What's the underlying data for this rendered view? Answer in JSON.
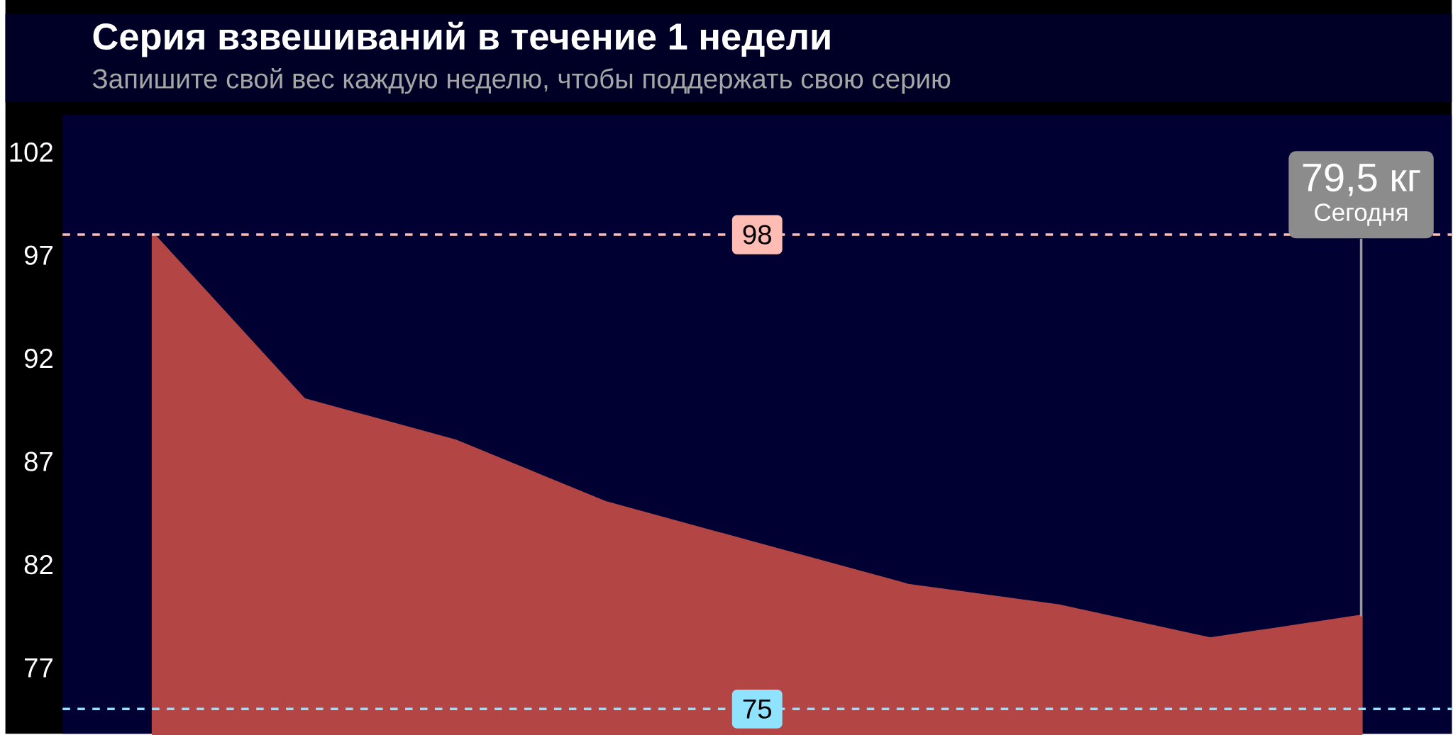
{
  "chart_data": {
    "type": "area",
    "title": "Серия взвешиваний в течение 1 недели",
    "subtitle": "Запишите свой вес каждую неделю, чтобы поддержать свою серию",
    "categories": [
      null,
      null,
      null,
      null,
      null,
      null,
      null,
      null,
      null
    ],
    "series": [
      {
        "color": "#b34545",
        "values": [
          98,
          90,
          88,
          85,
          83,
          81,
          80,
          78.4,
          79.5
        ]
      }
    ],
    "ylim": [
      73.8,
      103.8
    ],
    "yticks": [
      77,
      82,
      87,
      92,
      97,
      102
    ],
    "tick_labels": "y",
    "ref_lines": [
      {
        "axis": "y",
        "value": 98,
        "label": "98",
        "color": "#ffbcb4",
        "line_style": "dashed"
      },
      {
        "axis": "y",
        "value": 75,
        "label": "75",
        "color": "#8fe3ff",
        "line_style": "dashed"
      }
    ],
    "annotations": [
      {
        "text": "79,5 кг",
        "y": 79.5
      },
      "Сегодня"
    ]
  }
}
